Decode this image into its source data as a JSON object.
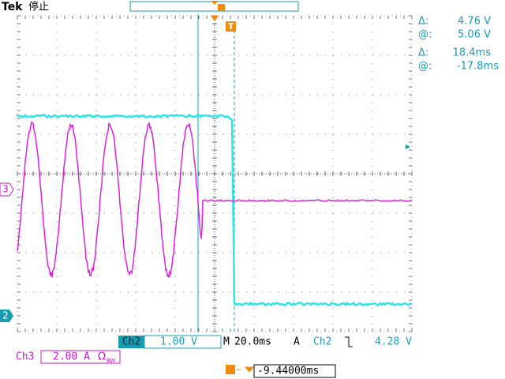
{
  "header": {
    "brand": "Tek",
    "status": "停止"
  },
  "readouts": [
    {
      "label": "Δ:",
      "value": "4.76 V"
    },
    {
      "label": "@:",
      "value": "5.06 V"
    },
    {
      "label": "Δ:",
      "value": "18.4ms"
    },
    {
      "label": "@:",
      "value": "-17.8ms"
    }
  ],
  "channel_markers": {
    "ch3": "3",
    "ch2": "2"
  },
  "trigger_marker": "T",
  "status_bar": {
    "ch2_label": "Ch2",
    "ch2_scale": "1.00 V",
    "timebase_label": "M",
    "timebase": "20.0ms",
    "trigger_mode": "A",
    "trigger_source": "Ch2",
    "trigger_level": "4.28 V",
    "ch3_label": "Ch3",
    "ch3_scale": "2.00 A",
    "ch3_unit": "Ω",
    "ch3_bw": "BW",
    "trigger_position": "-9.44000ms"
  }
}
